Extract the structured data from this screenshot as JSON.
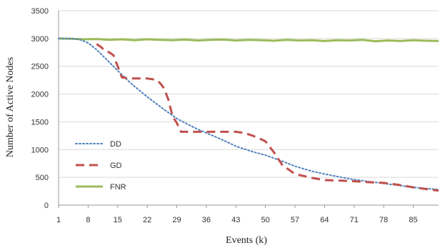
{
  "chart_data": {
    "type": "line",
    "xlabel": "Events   (k)",
    "ylabel": "Number of Active Nodes",
    "x_ticks": [
      "1",
      "8",
      "15",
      "22",
      "29",
      "36",
      "43",
      "50",
      "57",
      "64",
      "71",
      "78",
      "85"
    ],
    "y_ticks": [
      "0",
      "500",
      "1000",
      "1500",
      "2000",
      "2500",
      "3000",
      "3500"
    ],
    "xlim": [
      1,
      91
    ],
    "ylim": [
      0,
      3500
    ],
    "grid": "horizontal",
    "legend_position": "left-bottom",
    "series": [
      {
        "name": "DD",
        "style": "dotted",
        "color": "#4f81bd",
        "x": [
          1,
          4,
          6,
          8,
          10,
          12,
          15,
          18,
          22,
          26,
          29,
          33,
          36,
          40,
          43,
          47,
          50,
          54,
          57,
          61,
          64,
          68,
          71,
          75,
          78,
          82,
          85,
          88,
          91
        ],
        "y": [
          3000,
          3000,
          2980,
          2920,
          2800,
          2650,
          2420,
          2200,
          1950,
          1720,
          1560,
          1400,
          1300,
          1170,
          1060,
          960,
          900,
          790,
          700,
          610,
          560,
          500,
          460,
          420,
          390,
          350,
          320,
          300,
          280
        ]
      },
      {
        "name": "GD",
        "style": "dashed",
        "color": "#c0504d",
        "x": [
          10,
          11,
          12,
          13,
          14,
          16,
          18,
          22,
          24,
          25,
          26,
          27,
          28,
          29,
          30,
          32,
          36,
          40,
          43,
          45,
          47,
          50,
          52,
          54,
          57,
          61,
          64,
          68,
          71,
          75,
          78,
          82,
          85,
          88,
          91
        ],
        "y": [
          2900,
          2850,
          2780,
          2750,
          2700,
          2300,
          2280,
          2280,
          2260,
          2200,
          2100,
          1900,
          1600,
          1480,
          1320,
          1320,
          1320,
          1320,
          1320,
          1300,
          1250,
          1150,
          950,
          720,
          560,
          490,
          450,
          440,
          430,
          410,
          400,
          360,
          320,
          290,
          260
        ]
      },
      {
        "name": "FNR",
        "style": "solid",
        "color": "#9bbb59",
        "x": [
          1,
          4,
          7,
          10,
          13,
          16,
          19,
          22,
          25,
          28,
          31,
          34,
          37,
          40,
          43,
          46,
          49,
          52,
          55,
          58,
          61,
          64,
          67,
          70,
          73,
          76,
          79,
          82,
          85,
          88,
          91
        ],
        "y": [
          3000,
          2995,
          2985,
          2990,
          2975,
          2985,
          2970,
          2985,
          2975,
          2970,
          2980,
          2965,
          2975,
          2980,
          2965,
          2975,
          2970,
          2960,
          2975,
          2965,
          2970,
          2955,
          2970,
          2965,
          2975,
          2950,
          2965,
          2955,
          2970,
          2960,
          2955
        ]
      }
    ]
  }
}
